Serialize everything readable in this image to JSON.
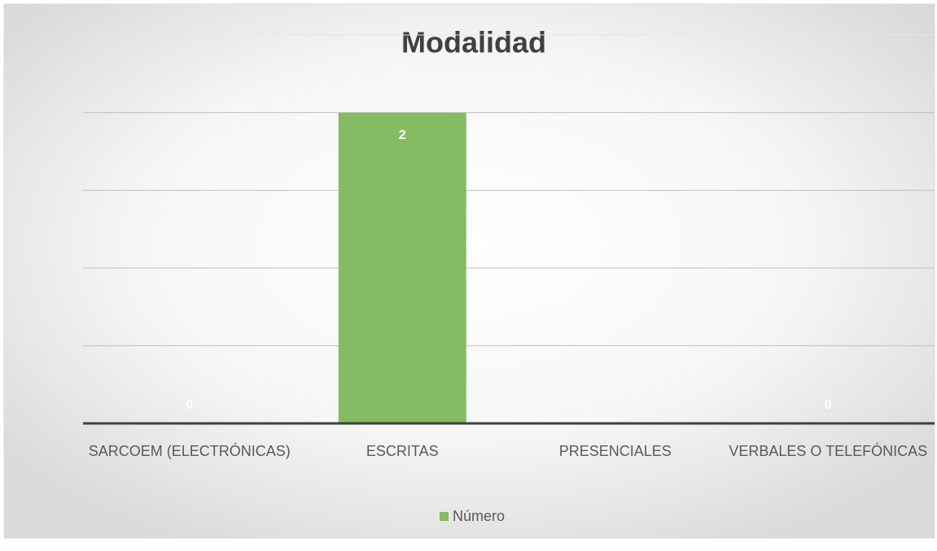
{
  "chart_data": {
    "type": "bar",
    "title": "Modalidad",
    "categories": [
      "SARCOEM (ELECTRÓNICAS)",
      "ESCRITAS",
      "PRESENCIALES",
      "VERBALES O TELEFÓNICAS"
    ],
    "series": [
      {
        "name": "Número",
        "color": "#84bb63",
        "values": [
          0,
          2,
          null,
          0
        ]
      }
    ],
    "ylim": [
      0,
      2.5
    ],
    "yticks": [
      0,
      0.5,
      1,
      1.5,
      2,
      2.5
    ],
    "grid": true,
    "legend": "bottom"
  }
}
